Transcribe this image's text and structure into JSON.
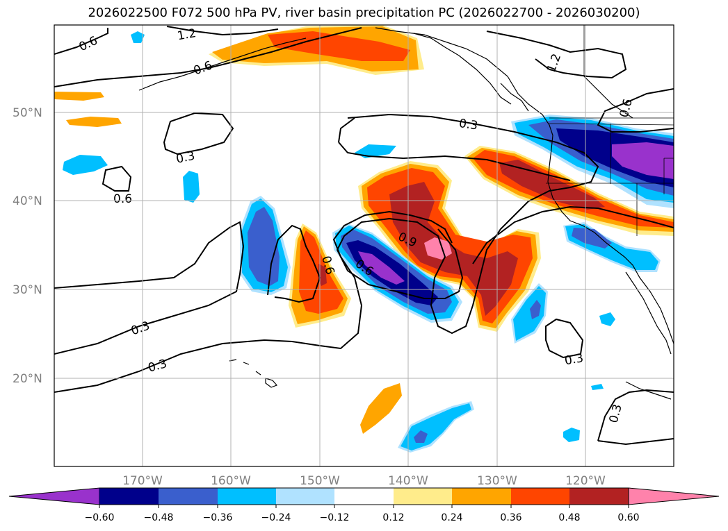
{
  "title": "2026022500 F072 500 hPa PV, river basin precipitation PC (2026022700 - 2026030200)",
  "map": {
    "lat_labels": [
      "50°N",
      "40°N",
      "30°N",
      "20°N"
    ],
    "lon_labels": [
      "170°W",
      "160°W",
      "150°W",
      "140°W",
      "130°W",
      "120°W"
    ],
    "contour_labels": [
      "0.6",
      "1.2",
      "0.6",
      "1.2",
      "0.3",
      "0.6",
      "0.3",
      "0.6",
      "0.9",
      "0.6",
      "0.6",
      "0.3",
      "0.3",
      "0.3",
      "0.3"
    ]
  },
  "colorbar": {
    "tick_labels": [
      "−0.60",
      "−0.48",
      "−0.36",
      "−0.24",
      "−0.12",
      "0.12",
      "0.24",
      "0.36",
      "0.48",
      "0.60"
    ],
    "colors": {
      "lt_-0.60": "#9932cc",
      "-0.60_-0.48": "#00008b",
      "-0.48_-0.36": "#3a5fcd",
      "-0.36_-0.24": "#00bfff",
      "-0.24_-0.12": "#b0e2ff",
      "-0.12_0.12": "#ffffff",
      "0.12_0.24": "#ffec8b",
      "0.24_0.36": "#ffa500",
      "0.36_0.48": "#ff4500",
      "0.48_0.60": "#b22222",
      "gt_0.60": "#ff82ab"
    }
  }
}
